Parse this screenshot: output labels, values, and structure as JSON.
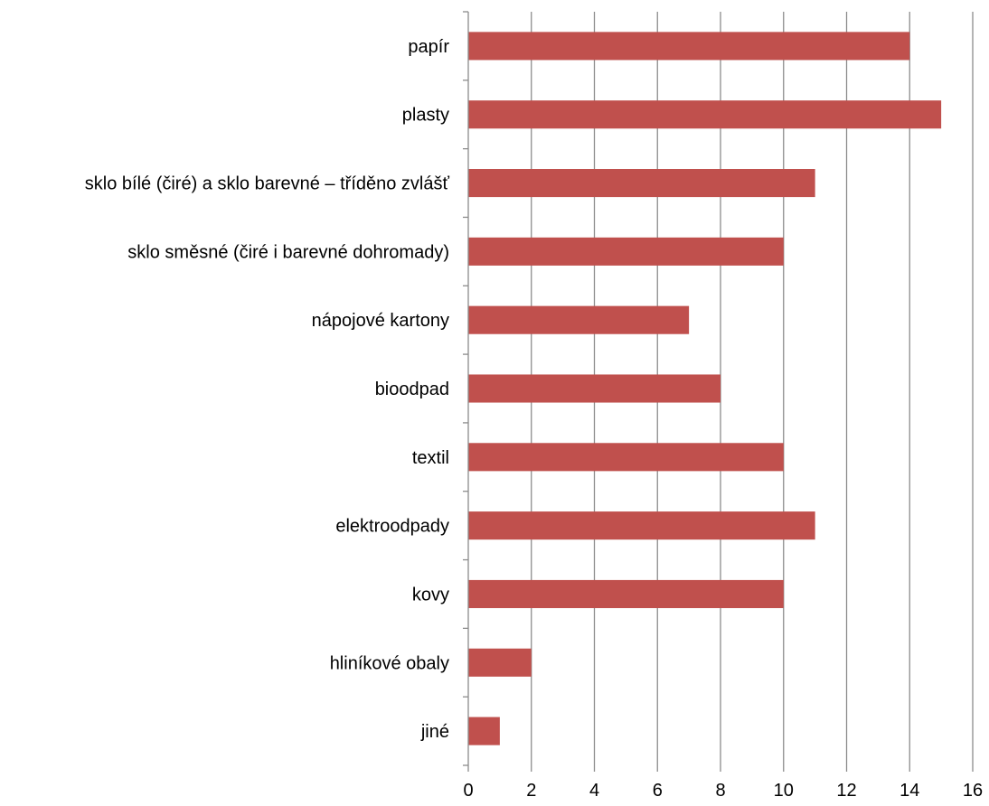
{
  "chart_data": {
    "type": "bar",
    "orientation": "horizontal",
    "categories": [
      "papír",
      "plasty",
      "sklo bílé (čiré) a sklo barevné – tříděno zvlášť",
      "sklo směsné (čiré i barevné dohromady)",
      "nápojové kartony",
      "bioodpad",
      "textil",
      "elektroodpady",
      "kovy",
      "hliníkové obaly",
      "jiné"
    ],
    "values": [
      14,
      15,
      11,
      10,
      7,
      8,
      10,
      11,
      10,
      2,
      1
    ],
    "xlim": [
      0,
      16
    ],
    "xticks": [
      0,
      2,
      4,
      6,
      8,
      10,
      12,
      14,
      16
    ],
    "title": "",
    "xlabel": "",
    "ylabel": "",
    "grid": "vertical",
    "legend": "none",
    "bar_color": "#c0504d"
  }
}
